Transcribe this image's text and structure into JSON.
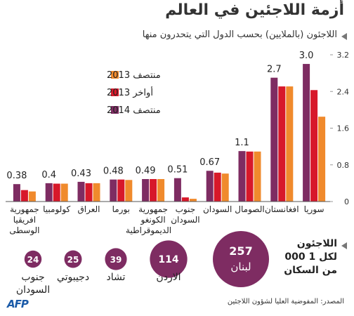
{
  "chart_data": [
    {
      "type": "bar",
      "title": "أزمة اللاجئين في العالم",
      "subtitle": "اللاجئون (بالملايين) بحسب الدول التي يتحدرون منها",
      "categories": [
        "سوريا",
        "افغانستان",
        "الصومال",
        "السودان",
        "جنوب السودان",
        "جمهورية الكونغو الديموقراطية",
        "بورما",
        "العراق",
        "كولومبيا",
        "جمهورية افريقيا الوسطى"
      ],
      "series": [
        {
          "name": "منتصف 2013",
          "color": "#f08a2c",
          "values": [
            1.85,
            2.51,
            1.09,
            0.61,
            0.06,
            0.49,
            0.47,
            0.4,
            0.39,
            0.22
          ]
        },
        {
          "name": "أواخر 2013",
          "color": "#d7182a",
          "values": [
            2.43,
            2.51,
            1.09,
            0.63,
            0.09,
            0.49,
            0.48,
            0.4,
            0.39,
            0.25
          ]
        },
        {
          "name": "منتصف 2014",
          "color": "#7e2c62",
          "values": [
            3.0,
            2.7,
            1.1,
            0.67,
            0.51,
            0.49,
            0.48,
            0.43,
            0.4,
            0.38
          ],
          "value_labels": [
            "3.0",
            "2.7",
            "1.1",
            "0.67",
            "0.51",
            "0.49",
            "0.48",
            "0.43",
            "0.4",
            "0.38"
          ]
        }
      ],
      "ylim": [
        0,
        3.2
      ],
      "yticks": [
        0,
        0.8,
        1.6,
        2.4,
        3.2
      ],
      "grid": false
    },
    {
      "type": "bubble",
      "title": "اللاجئون لكل 1 000 من السكان",
      "categories": [
        "لبنان",
        "الاردن",
        "تشاد",
        "دجيبوتي",
        "جنوب السودان"
      ],
      "values": [
        257,
        114,
        39,
        25,
        24
      ],
      "color": "#7e2c62"
    }
  ],
  "source": "المصدر: المفوضية العليا لشؤون اللاجئين",
  "logo": "AFP"
}
